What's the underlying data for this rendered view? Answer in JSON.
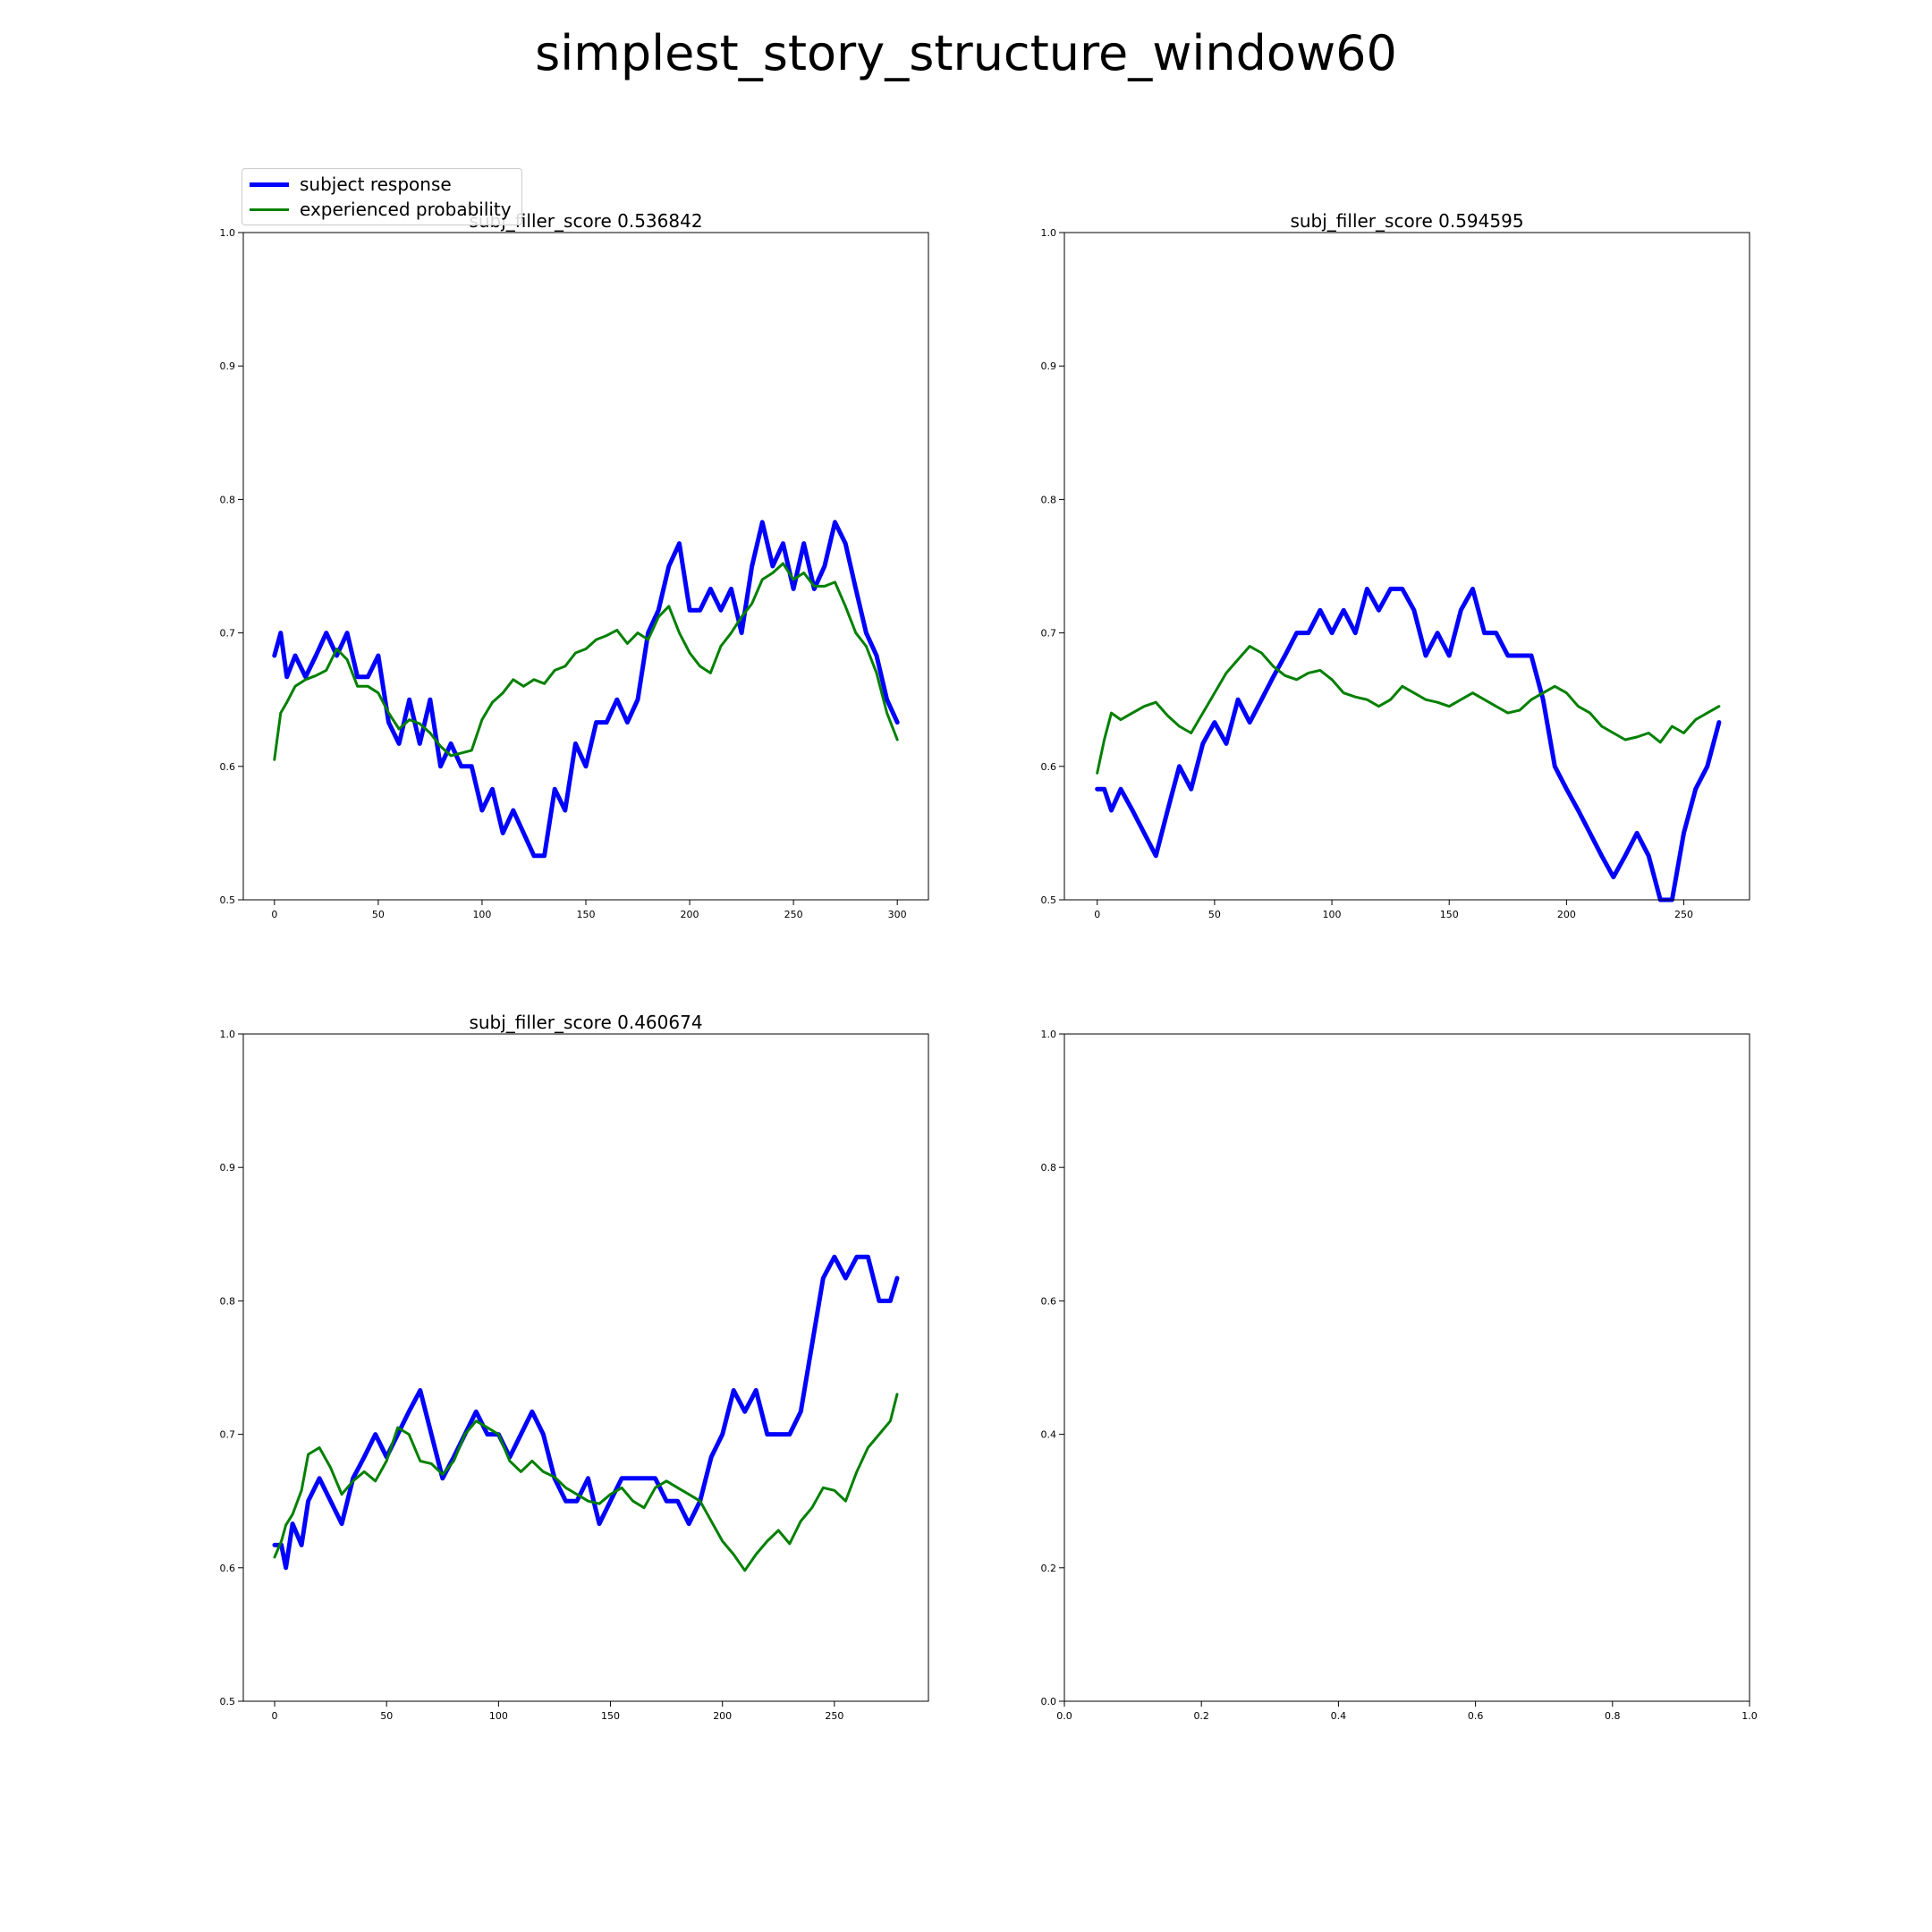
{
  "figure": {
    "title": "simplest_story_structure_window60"
  },
  "legend": {
    "entries": [
      {
        "label": "subject response",
        "color": "#0000ff"
      },
      {
        "label": "experienced probability",
        "color": "#008000"
      }
    ],
    "placement": "above top-left panel"
  },
  "chart_data": [
    {
      "type": "line",
      "title": "subj_filler_score 0.536842",
      "xlim": [
        -15,
        315
      ],
      "ylim": [
        0.5,
        1.0
      ],
      "xticks": [
        0,
        50,
        100,
        150,
        200,
        250,
        300
      ],
      "yticks": [
        0.5,
        0.6,
        0.7,
        0.8,
        0.9,
        1.0
      ],
      "xtick_labels": [
        "0",
        "50",
        "100",
        "150",
        "200",
        "250",
        "300"
      ],
      "ytick_labels": [
        "0.5",
        "0.6",
        "0.7",
        "0.8",
        "0.9",
        "1.0"
      ],
      "grid": false,
      "series": [
        {
          "name": "subject response",
          "color": "#0000ff",
          "x": [
            0,
            3,
            6,
            10,
            15,
            20,
            25,
            30,
            35,
            40,
            45,
            50,
            55,
            60,
            65,
            70,
            75,
            80,
            85,
            90,
            95,
            100,
            105,
            110,
            115,
            120,
            125,
            130,
            135,
            140,
            145,
            150,
            155,
            160,
            165,
            170,
            175,
            180,
            185,
            190,
            195,
            200,
            205,
            210,
            215,
            220,
            225,
            230,
            235,
            240,
            245,
            250,
            255,
            260,
            265,
            270,
            275,
            280,
            285,
            290,
            295,
            300
          ],
          "y": [
            0.683,
            0.7,
            0.667,
            0.683,
            0.667,
            0.683,
            0.7,
            0.683,
            0.7,
            0.667,
            0.667,
            0.683,
            0.633,
            0.617,
            0.65,
            0.617,
            0.65,
            0.6,
            0.617,
            0.6,
            0.6,
            0.567,
            0.583,
            0.55,
            0.567,
            0.55,
            0.533,
            0.533,
            0.583,
            0.567,
            0.617,
            0.6,
            0.633,
            0.633,
            0.65,
            0.633,
            0.65,
            0.7,
            0.717,
            0.75,
            0.767,
            0.717,
            0.717,
            0.733,
            0.717,
            0.733,
            0.7,
            0.75,
            0.783,
            0.75,
            0.767,
            0.733,
            0.767,
            0.733,
            0.75,
            0.783,
            0.767,
            0.733,
            0.7,
            0.683,
            0.65,
            0.633
          ]
        },
        {
          "name": "experienced probability",
          "color": "#008000",
          "x": [
            0,
            3,
            6,
            10,
            15,
            20,
            25,
            30,
            35,
            40,
            45,
            50,
            55,
            60,
            65,
            70,
            75,
            80,
            85,
            90,
            95,
            100,
            105,
            110,
            115,
            120,
            125,
            130,
            135,
            140,
            145,
            150,
            155,
            160,
            165,
            170,
            175,
            180,
            185,
            190,
            195,
            200,
            205,
            210,
            215,
            220,
            225,
            230,
            235,
            240,
            245,
            250,
            255,
            260,
            265,
            270,
            275,
            280,
            285,
            290,
            295,
            300
          ],
          "y": [
            0.605,
            0.64,
            0.648,
            0.66,
            0.665,
            0.668,
            0.672,
            0.688,
            0.68,
            0.66,
            0.66,
            0.655,
            0.64,
            0.628,
            0.635,
            0.632,
            0.625,
            0.615,
            0.608,
            0.61,
            0.612,
            0.635,
            0.648,
            0.655,
            0.665,
            0.66,
            0.665,
            0.662,
            0.672,
            0.675,
            0.685,
            0.688,
            0.695,
            0.698,
            0.702,
            0.692,
            0.7,
            0.695,
            0.712,
            0.72,
            0.7,
            0.685,
            0.675,
            0.67,
            0.69,
            0.7,
            0.712,
            0.722,
            0.74,
            0.745,
            0.752,
            0.74,
            0.745,
            0.735,
            0.735,
            0.738,
            0.72,
            0.7,
            0.69,
            0.67,
            0.64,
            0.62
          ]
        }
      ]
    },
    {
      "type": "line",
      "title": "subj_filler_score 0.594595",
      "xlim": [
        -14,
        278
      ],
      "ylim": [
        0.5,
        1.0
      ],
      "xticks": [
        0,
        50,
        100,
        150,
        200,
        250
      ],
      "yticks": [
        0.5,
        0.6,
        0.7,
        0.8,
        0.9,
        1.0
      ],
      "xtick_labels": [
        "0",
        "50",
        "100",
        "150",
        "200",
        "250"
      ],
      "ytick_labels": [
        "0.5",
        "0.6",
        "0.7",
        "0.8",
        "0.9",
        "1.0"
      ],
      "grid": false,
      "series": [
        {
          "name": "subject response",
          "color": "#0000ff",
          "x": [
            0,
            3,
            6,
            10,
            15,
            20,
            25,
            30,
            35,
            40,
            45,
            50,
            55,
            60,
            65,
            70,
            75,
            80,
            85,
            90,
            95,
            100,
            105,
            110,
            115,
            120,
            125,
            130,
            135,
            140,
            145,
            150,
            155,
            160,
            165,
            170,
            175,
            180,
            185,
            190,
            195,
            200,
            205,
            210,
            215,
            220,
            225,
            230,
            235,
            240,
            245,
            250,
            255,
            260,
            265
          ],
          "y": [
            0.583,
            0.583,
            0.567,
            0.583,
            0.567,
            0.55,
            0.533,
            0.567,
            0.6,
            0.583,
            0.617,
            0.633,
            0.617,
            0.65,
            0.633,
            0.65,
            0.667,
            0.683,
            0.7,
            0.7,
            0.717,
            0.7,
            0.717,
            0.7,
            0.733,
            0.717,
            0.733,
            0.733,
            0.717,
            0.683,
            0.7,
            0.683,
            0.717,
            0.733,
            0.7,
            0.7,
            0.683,
            0.683,
            0.683,
            0.65,
            0.6,
            0.583,
            0.567,
            0.55,
            0.533,
            0.517,
            0.533,
            0.55,
            0.533,
            0.5,
            0.5,
            0.55,
            0.583,
            0.6,
            0.633
          ]
        },
        {
          "name": "experienced probability",
          "color": "#008000",
          "x": [
            0,
            3,
            6,
            10,
            15,
            20,
            25,
            30,
            35,
            40,
            45,
            50,
            55,
            60,
            65,
            70,
            75,
            80,
            85,
            90,
            95,
            100,
            105,
            110,
            115,
            120,
            125,
            130,
            135,
            140,
            145,
            150,
            155,
            160,
            165,
            170,
            175,
            180,
            185,
            190,
            195,
            200,
            205,
            210,
            215,
            220,
            225,
            230,
            235,
            240,
            245,
            250,
            255,
            260,
            265
          ],
          "y": [
            0.595,
            0.62,
            0.64,
            0.635,
            0.64,
            0.645,
            0.648,
            0.638,
            0.63,
            0.625,
            0.64,
            0.655,
            0.67,
            0.68,
            0.69,
            0.685,
            0.675,
            0.668,
            0.665,
            0.67,
            0.672,
            0.665,
            0.655,
            0.652,
            0.65,
            0.645,
            0.65,
            0.66,
            0.655,
            0.65,
            0.648,
            0.645,
            0.65,
            0.655,
            0.65,
            0.645,
            0.64,
            0.642,
            0.65,
            0.655,
            0.66,
            0.655,
            0.645,
            0.64,
            0.63,
            0.625,
            0.62,
            0.622,
            0.625,
            0.618,
            0.63,
            0.625,
            0.635,
            0.64,
            0.645
          ]
        }
      ]
    },
    {
      "type": "line",
      "title": "subj_filler_score 0.460674",
      "xlim": [
        -14,
        292
      ],
      "ylim": [
        0.5,
        1.0
      ],
      "xticks": [
        0,
        50,
        100,
        150,
        200,
        250
      ],
      "yticks": [
        0.5,
        0.6,
        0.7,
        0.8,
        0.9,
        1.0
      ],
      "xtick_labels": [
        "0",
        "50",
        "100",
        "150",
        "200",
        "250"
      ],
      "ytick_labels": [
        "0.5",
        "0.6",
        "0.7",
        "0.8",
        "0.9",
        "1.0"
      ],
      "grid": false,
      "series": [
        {
          "name": "subject response",
          "color": "#0000ff",
          "x": [
            0,
            3,
            5,
            8,
            12,
            15,
            20,
            25,
            30,
            35,
            40,
            45,
            50,
            55,
            60,
            65,
            70,
            75,
            80,
            85,
            90,
            95,
            100,
            105,
            110,
            115,
            120,
            125,
            130,
            135,
            140,
            145,
            150,
            155,
            160,
            165,
            170,
            175,
            180,
            185,
            190,
            195,
            200,
            205,
            210,
            215,
            220,
            225,
            230,
            235,
            240,
            245,
            250,
            255,
            260,
            265,
            270,
            275,
            278
          ],
          "y": [
            0.617,
            0.617,
            0.6,
            0.633,
            0.617,
            0.65,
            0.667,
            0.65,
            0.633,
            0.667,
            0.683,
            0.7,
            0.683,
            0.7,
            0.717,
            0.733,
            0.7,
            0.667,
            0.683,
            0.7,
            0.717,
            0.7,
            0.7,
            0.683,
            0.7,
            0.717,
            0.7,
            0.667,
            0.65,
            0.65,
            0.667,
            0.633,
            0.65,
            0.667,
            0.667,
            0.667,
            0.667,
            0.65,
            0.65,
            0.633,
            0.65,
            0.683,
            0.7,
            0.733,
            0.717,
            0.733,
            0.7,
            0.7,
            0.7,
            0.717,
            0.767,
            0.817,
            0.833,
            0.817,
            0.833,
            0.833,
            0.8,
            0.8,
            0.817
          ]
        },
        {
          "name": "experienced probability",
          "color": "#008000",
          "x": [
            0,
            3,
            5,
            8,
            12,
            15,
            20,
            25,
            30,
            35,
            40,
            45,
            50,
            55,
            60,
            65,
            70,
            75,
            80,
            85,
            90,
            95,
            100,
            105,
            110,
            115,
            120,
            125,
            130,
            135,
            140,
            145,
            150,
            155,
            160,
            165,
            170,
            175,
            180,
            185,
            190,
            195,
            200,
            205,
            210,
            215,
            220,
            225,
            230,
            235,
            240,
            245,
            250,
            255,
            260,
            265,
            270,
            275,
            278
          ],
          "y": [
            0.608,
            0.62,
            0.632,
            0.64,
            0.658,
            0.685,
            0.69,
            0.675,
            0.655,
            0.665,
            0.672,
            0.665,
            0.68,
            0.705,
            0.7,
            0.68,
            0.678,
            0.67,
            0.68,
            0.7,
            0.71,
            0.705,
            0.7,
            0.68,
            0.672,
            0.68,
            0.672,
            0.668,
            0.66,
            0.655,
            0.65,
            0.648,
            0.655,
            0.66,
            0.65,
            0.645,
            0.66,
            0.665,
            0.66,
            0.655,
            0.65,
            0.635,
            0.62,
            0.61,
            0.598,
            0.61,
            0.62,
            0.628,
            0.618,
            0.635,
            0.645,
            0.66,
            0.658,
            0.65,
            0.672,
            0.69,
            0.7,
            0.71,
            0.73
          ]
        }
      ]
    },
    {
      "type": "line",
      "title": "",
      "xlim": [
        0,
        1
      ],
      "ylim": [
        0,
        1
      ],
      "xticks": [
        0,
        0.2,
        0.4,
        0.6,
        0.8,
        1.0
      ],
      "yticks": [
        0,
        0.2,
        0.4,
        0.6,
        0.8,
        1.0
      ],
      "xtick_labels": [
        "0.0",
        "0.2",
        "0.4",
        "0.6",
        "0.8",
        "1.0"
      ],
      "ytick_labels": [
        "0.0",
        "0.2",
        "0.4",
        "0.6",
        "0.8",
        "1.0"
      ],
      "grid": false,
      "series": []
    }
  ]
}
